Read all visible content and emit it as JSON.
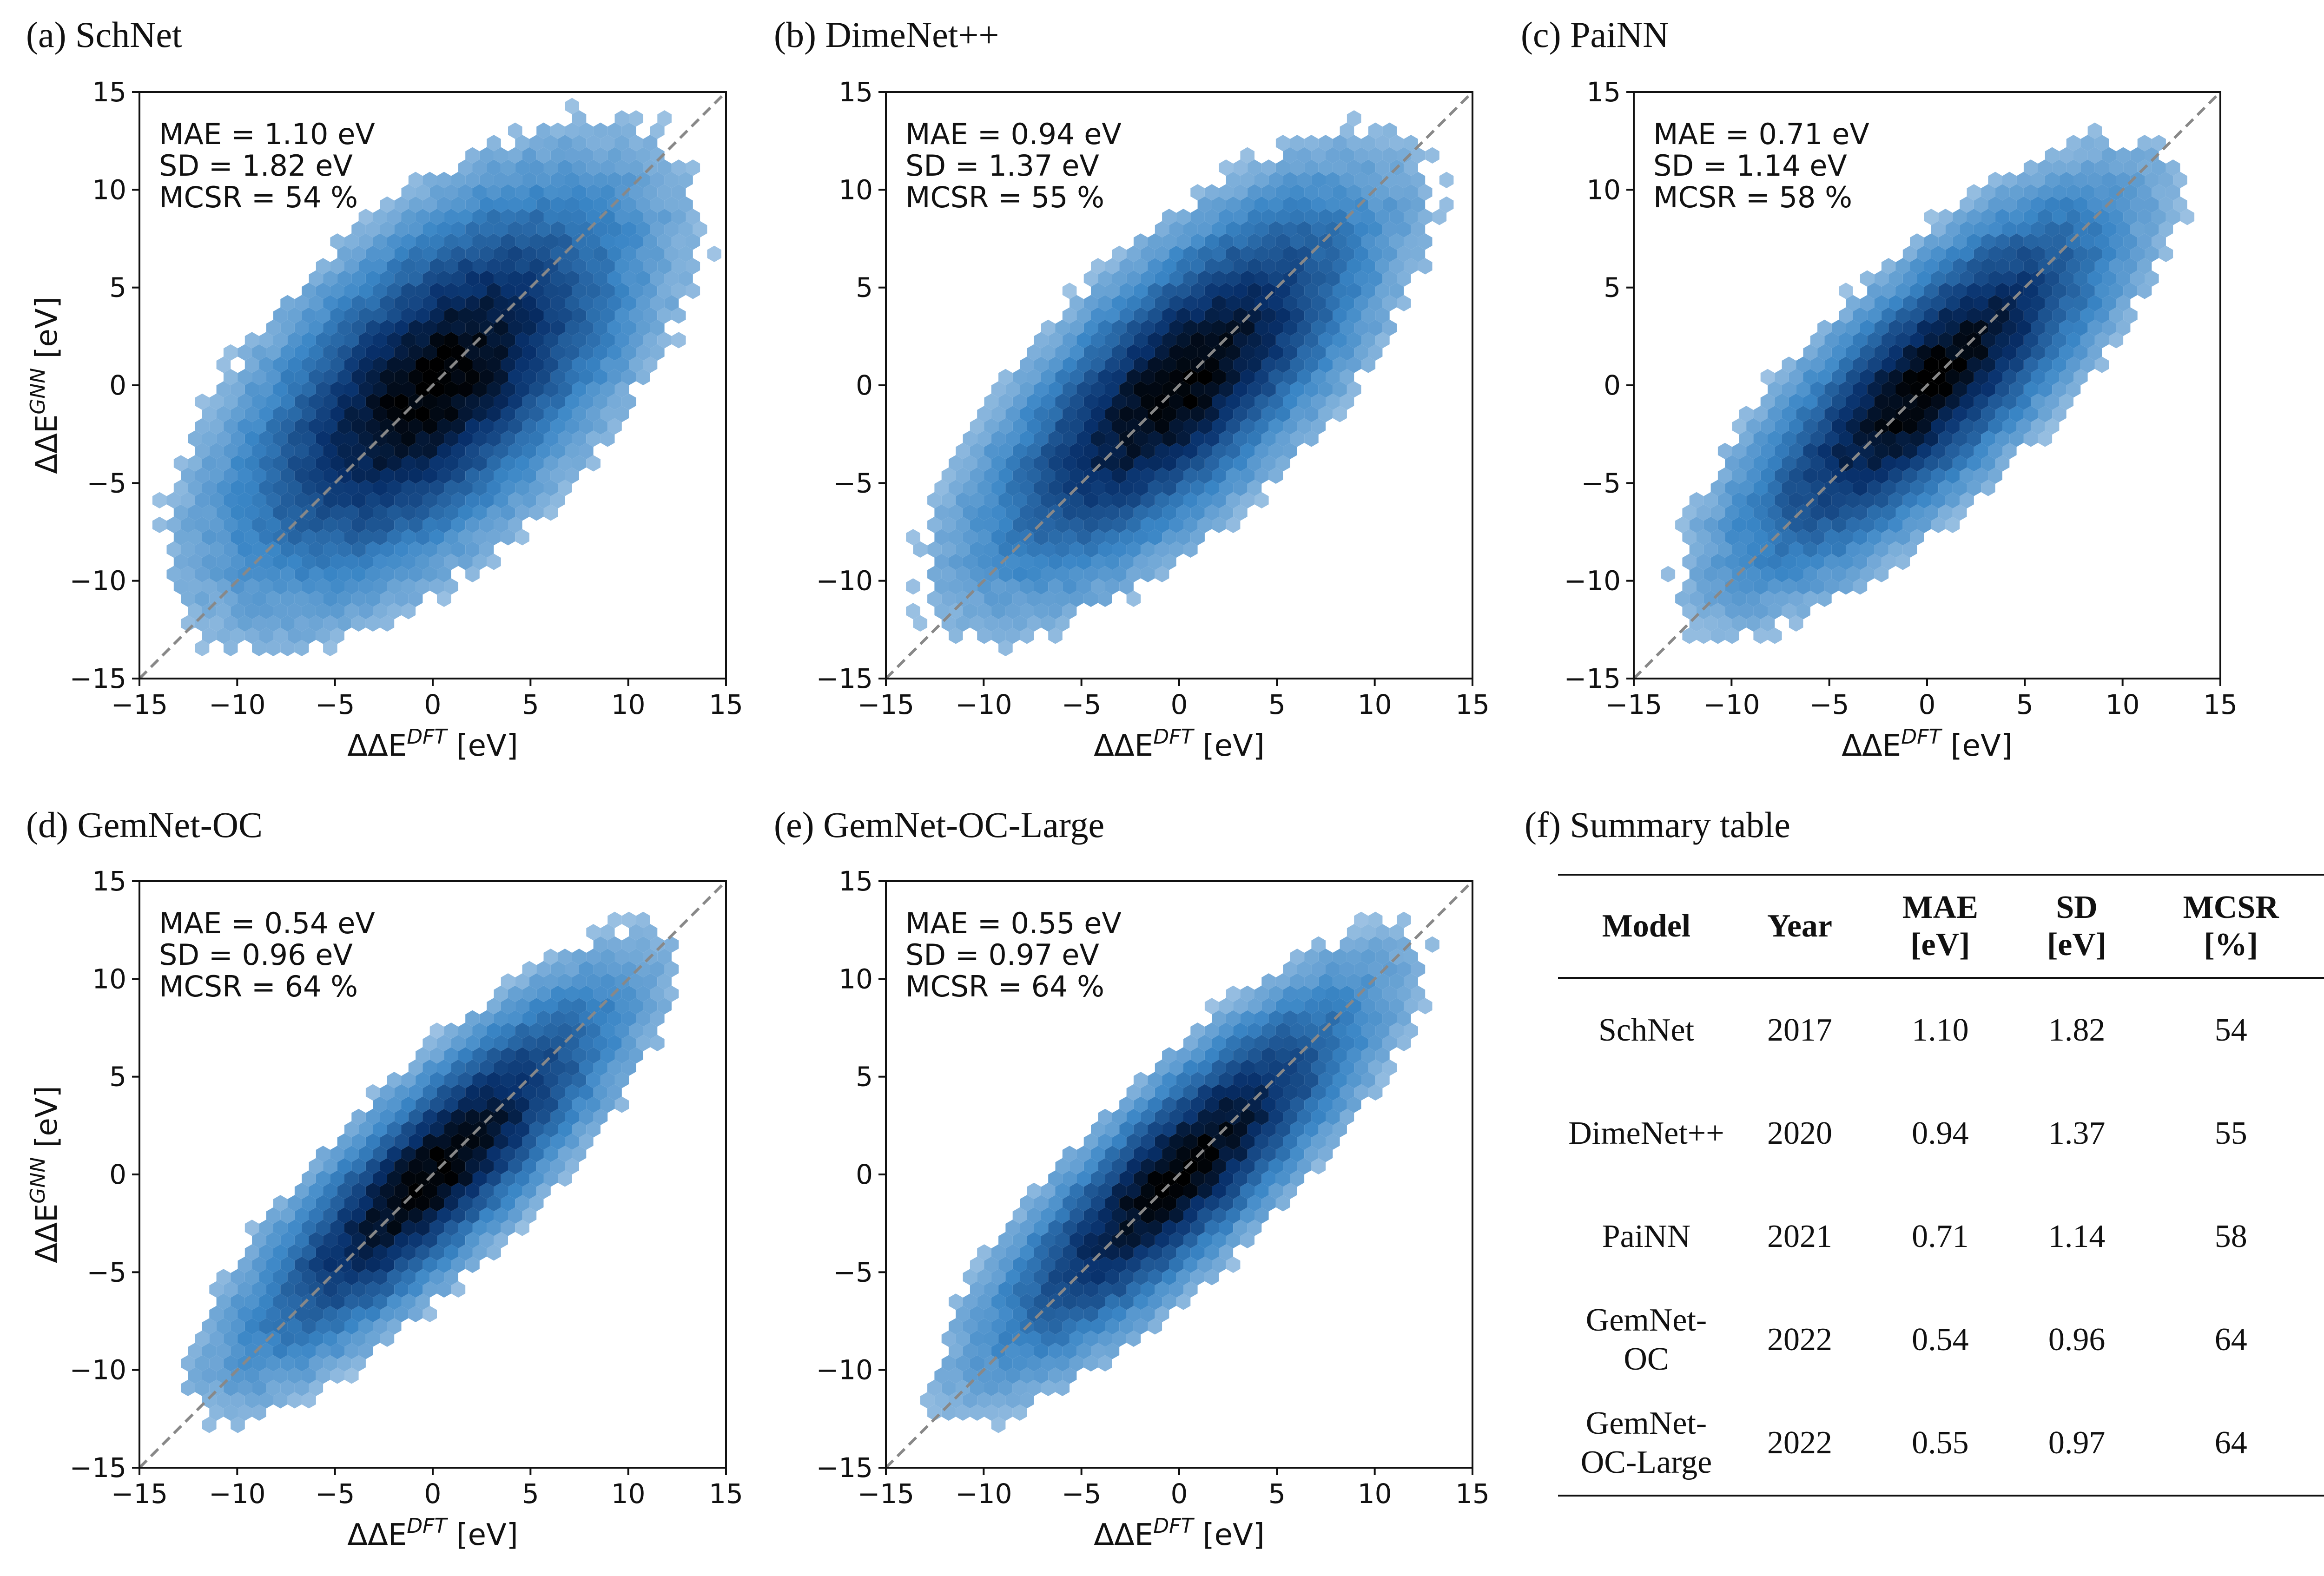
{
  "colors": {
    "light": "#c6dbef",
    "mid": "#3a86c6",
    "dark": "#08306b",
    "core": "#000000",
    "identity": "#888888"
  },
  "axis_labels": {
    "x": "ΔΔE",
    "x_sup": "DFT",
    "x_unit": " [eV]",
    "y": "ΔΔE",
    "y_sup": "GNN",
    "y_unit": " [eV]"
  },
  "chart_data": [
    {
      "type": "scatter",
      "subtype": "hexbin-density",
      "title": "(a) SchNet",
      "xlim": [
        -15,
        15
      ],
      "ylim": [
        -15,
        15
      ],
      "xticks": [
        "−15",
        "−10",
        "−5",
        "0",
        "5",
        "10",
        "15"
      ],
      "yticks": [
        "−15",
        "−10",
        "−5",
        "0",
        "5",
        "10",
        "15"
      ],
      "spread": 3.6,
      "identity_line": true,
      "stats": [
        "MAE = 1.10 eV",
        "SD = 1.82 eV",
        "MCSR = 54 %"
      ]
    },
    {
      "type": "scatter",
      "subtype": "hexbin-density",
      "title": "(b) DimeNet++",
      "xlim": [
        -15,
        15
      ],
      "ylim": [
        -15,
        15
      ],
      "xticks": [
        "−15",
        "−10",
        "−5",
        "0",
        "5",
        "10",
        "15"
      ],
      "yticks": [
        "−15",
        "−10",
        "−5",
        "0",
        "5",
        "10",
        "15"
      ],
      "spread": 2.9,
      "identity_line": true,
      "stats": [
        "MAE = 0.94 eV",
        "SD = 1.37 eV",
        "MCSR = 55 %"
      ]
    },
    {
      "type": "scatter",
      "subtype": "hexbin-density",
      "title": "(c) PaiNN",
      "xlim": [
        -15,
        15
      ],
      "ylim": [
        -15,
        15
      ],
      "xticks": [
        "−15",
        "−10",
        "−5",
        "0",
        "5",
        "10",
        "15"
      ],
      "yticks": [
        "−15",
        "−10",
        "−5",
        "0",
        "5",
        "10",
        "15"
      ],
      "spread": 2.5,
      "identity_line": true,
      "stats": [
        "MAE = 0.71 eV",
        "SD = 1.14 eV",
        "MCSR = 58 %"
      ]
    },
    {
      "type": "scatter",
      "subtype": "hexbin-density",
      "title": "(d) GemNet-OC",
      "xlim": [
        -15,
        15
      ],
      "ylim": [
        -15,
        15
      ],
      "xticks": [
        "−15",
        "−10",
        "−5",
        "0",
        "5",
        "10",
        "15"
      ],
      "yticks": [
        "−15",
        "−10",
        "−5",
        "0",
        "5",
        "10",
        "15"
      ],
      "spread": 2.1,
      "identity_line": true,
      "stats": [
        "MAE = 0.54 eV",
        "SD = 0.96 eV",
        "MCSR = 64 %"
      ]
    },
    {
      "type": "scatter",
      "subtype": "hexbin-density",
      "title": "(e) GemNet-OC-Large",
      "xlim": [
        -15,
        15
      ],
      "ylim": [
        -15,
        15
      ],
      "xticks": [
        "−15",
        "−10",
        "−5",
        "0",
        "5",
        "10",
        "15"
      ],
      "yticks": [
        "−15",
        "−10",
        "−5",
        "0",
        "5",
        "10",
        "15"
      ],
      "spread": 2.1,
      "identity_line": true,
      "stats": [
        "MAE = 0.55 eV",
        "SD = 0.97 eV",
        "MCSR = 64 %"
      ]
    },
    {
      "type": "table",
      "title": "(f) Summary table",
      "headers": [
        [
          "Model"
        ],
        [
          "Year"
        ],
        [
          "MAE",
          "[eV]"
        ],
        [
          "SD",
          "[eV]"
        ],
        [
          "MCSR",
          "[%]"
        ]
      ],
      "rows": [
        [
          [
            "SchNet"
          ],
          "2017",
          "1.10",
          "1.82",
          "54"
        ],
        [
          [
            "DimeNet++"
          ],
          "2020",
          "0.94",
          "1.37",
          "55"
        ],
        [
          [
            "PaiNN"
          ],
          "2021",
          "0.71",
          "1.14",
          "58"
        ],
        [
          [
            "GemNet-",
            "OC"
          ],
          "2022",
          "0.54",
          "0.96",
          "64"
        ],
        [
          [
            "GemNet-",
            "OC-Large"
          ],
          "2022",
          "0.55",
          "0.97",
          "64"
        ]
      ]
    }
  ]
}
